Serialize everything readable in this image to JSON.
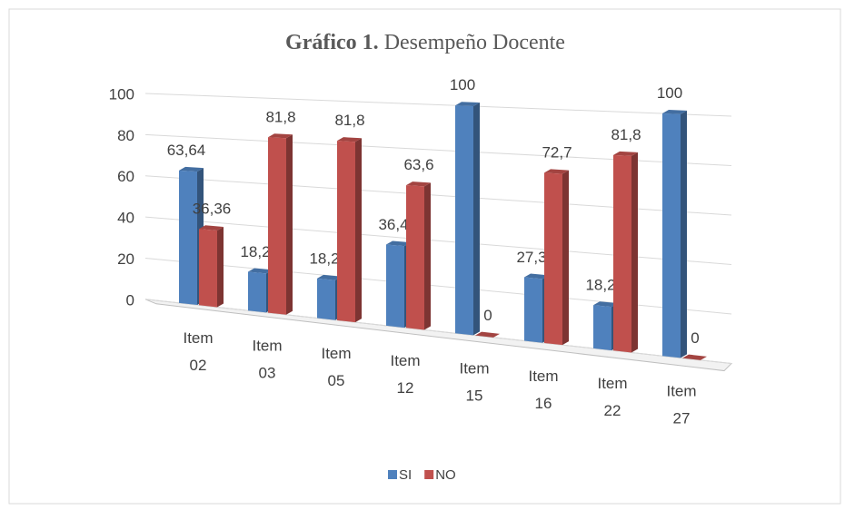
{
  "chart_data": {
    "type": "bar3d",
    "title_label": "Gráfico 1.",
    "title": "Desempeño Docente",
    "categories": [
      "Item 02",
      "Item 03",
      "Item 05",
      "Item 12",
      "Item 15",
      "Item 16",
      "Item 22",
      "Item 27"
    ],
    "series": [
      {
        "name": "SI",
        "color": "#4f81bd",
        "values": [
          63.64,
          18.2,
          18.2,
          36.4,
          100,
          27.3,
          18.2,
          100
        ],
        "value_labels": [
          "63,64",
          "18,2",
          "18,2",
          "36,4",
          "100",
          "27,3",
          "18,2",
          "100"
        ]
      },
      {
        "name": "NO",
        "color": "#c0504d",
        "values": [
          36.36,
          81.8,
          81.8,
          63.6,
          0,
          72.7,
          81.8,
          0
        ],
        "value_labels": [
          "36,36",
          "81,8",
          "81,8",
          "63,6",
          "0",
          "72,7",
          "81,8",
          "0"
        ]
      }
    ],
    "ylim": [
      0,
      100
    ],
    "yticks": [
      0,
      20,
      40,
      60,
      80,
      100
    ],
    "grid": true,
    "legend": "bottom"
  }
}
